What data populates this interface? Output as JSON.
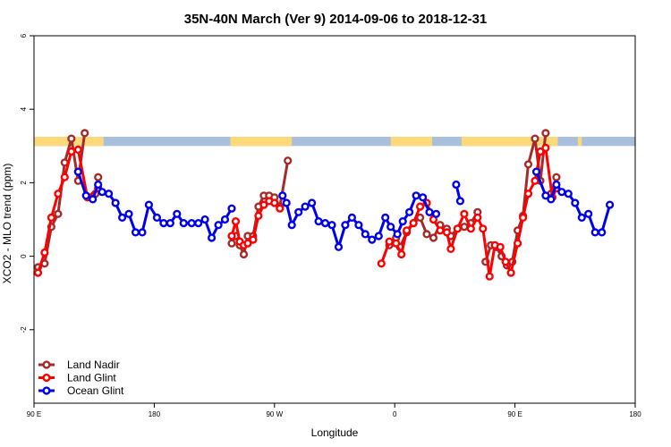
{
  "chart_data": {
    "type": "line",
    "title": "35N-40N March (Ver 9)   2014-09-06 to 2018-12-31",
    "xlabel": "Longitude",
    "ylabel": "XCO2 - MLO trend (ppm)",
    "xlim": [
      90,
      540
    ],
    "ylim": [
      -4,
      6
    ],
    "x_ticks": [
      {
        "value": 90,
        "label": "90 E"
      },
      {
        "value": 180,
        "label": "180"
      },
      {
        "value": 270,
        "label": "90 W"
      },
      {
        "value": 360,
        "label": "0"
      },
      {
        "value": 450,
        "label": "90 E"
      },
      {
        "value": 540,
        "label": "180"
      }
    ],
    "y_ticks": [
      {
        "value": -2,
        "label": "-2"
      },
      {
        "value": 0,
        "label": "0"
      },
      {
        "value": 2,
        "label": "2"
      },
      {
        "value": 4,
        "label": "4"
      },
      {
        "value": 6,
        "label": "6"
      }
    ],
    "legend_position": "bottom-left",
    "land_sea_band": {
      "y_range": [
        3.0,
        3.25
      ],
      "land_color": "#FDD97A",
      "ocean_color": "#A8BFDD",
      "land_ranges": [
        [
          90,
          142
        ],
        [
          237,
          283
        ],
        [
          357,
          388
        ],
        [
          410,
          482
        ],
        [
          497,
          500
        ]
      ]
    },
    "series": [
      {
        "name": "Land Nadir",
        "color": "#A52A2A",
        "segments": [
          [
            [
              93,
              -0.3
            ],
            [
              98,
              -0.2
            ],
            [
              103,
              0.8
            ],
            [
              108,
              1.15
            ],
            [
              113,
              2.55
            ],
            [
              118,
              3.2
            ],
            [
              123,
              2.05
            ],
            [
              128,
              3.35
            ]
          ],
          [
            [
              136,
              1.7
            ],
            [
              138,
              2.15
            ]
          ],
          [
            [
              238,
              0.35
            ],
            [
              241,
              0.55
            ],
            [
              244,
              0.3
            ],
            [
              247,
              0.05
            ],
            [
              250,
              0.55
            ],
            [
              254,
              0.55
            ],
            [
              258,
              1.35
            ],
            [
              262,
              1.65
            ],
            [
              266,
              1.65
            ],
            [
              270,
              1.6
            ],
            [
              274,
              1.35
            ],
            [
              280,
              2.6
            ]
          ],
          [
            [
              356,
              0.3
            ],
            [
              361,
              0.5
            ],
            [
              364,
              0.25
            ],
            [
              369,
              0.65
            ],
            [
              374,
              0.9
            ],
            [
              379,
              1.05
            ],
            [
              384,
              0.6
            ],
            [
              389,
              0.5
            ],
            [
              394,
              0.85
            ],
            [
              399,
              0.75
            ],
            [
              402,
              0.55
            ],
            [
              407,
              0.75
            ],
            [
              412,
              0.8
            ],
            [
              417,
              0.9
            ],
            [
              422,
              1.2
            ]
          ],
          [
            [
              428,
              -0.15
            ],
            [
              432,
              0.3
            ],
            [
              436,
              0.25
            ],
            [
              440,
              0.0
            ],
            [
              444,
              -0.25
            ],
            [
              448,
              -0.15
            ],
            [
              452,
              0.7
            ],
            [
              456,
              1.1
            ],
            [
              460,
              2.5
            ],
            [
              465,
              3.2
            ],
            [
              469,
              2.05
            ],
            [
              473,
              3.35
            ]
          ],
          [
            [
              477,
              1.7
            ],
            [
              481,
              2.15
            ]
          ]
        ]
      },
      {
        "name": "Land Glint",
        "color": "#FF0000",
        "segments": [
          [
            [
              93,
              -0.45
            ],
            [
              98,
              0.1
            ],
            [
              103,
              1.05
            ],
            [
              108,
              1.7
            ],
            [
              113,
              2.15
            ],
            [
              118,
              2.85
            ],
            [
              123,
              2.9
            ],
            [
              130,
              1.6
            ],
            [
              138,
              1.85
            ]
          ],
          [
            [
              238,
              0.55
            ],
            [
              241,
              0.95
            ],
            [
              244,
              0.4
            ],
            [
              247,
              0.3
            ],
            [
              250,
              0.35
            ],
            [
              254,
              0.45
            ],
            [
              258,
              1.1
            ],
            [
              262,
              1.4
            ],
            [
              266,
              1.5
            ],
            [
              270,
              1.45
            ],
            [
              274,
              1.3
            ]
          ],
          [
            [
              350,
              -0.2
            ],
            [
              356,
              0.4
            ],
            [
              361,
              0.35
            ],
            [
              365,
              0.05
            ],
            [
              369,
              0.7
            ],
            [
              374,
              0.9
            ],
            [
              379,
              1.35
            ],
            [
              384,
              1.45
            ],
            [
              389,
              1.0
            ],
            [
              394,
              0.7
            ],
            [
              399,
              0.65
            ],
            [
              402,
              0.2
            ],
            [
              407,
              0.75
            ],
            [
              412,
              1.15
            ],
            [
              417,
              0.75
            ],
            [
              422,
              1.05
            ],
            [
              426,
              0.75
            ],
            [
              431,
              -0.55
            ],
            [
              435,
              0.3
            ],
            [
              439,
              0.25
            ],
            [
              443,
              -0.15
            ],
            [
              447,
              -0.45
            ],
            [
              452,
              0.35
            ],
            [
              456,
              1.05
            ],
            [
              460,
              1.7
            ],
            [
              465,
              2.05
            ],
            [
              469,
              2.85
            ],
            [
              473,
              2.95
            ],
            [
              478,
              1.6
            ],
            [
              481,
              1.85
            ]
          ]
        ]
      },
      {
        "name": "Ocean Glint",
        "color": "#0000EE",
        "segments": [
          [
            [
              123,
              2.3
            ],
            [
              129,
              1.65
            ],
            [
              134,
              1.55
            ],
            [
              138,
              1.95
            ],
            [
              141,
              1.75
            ],
            [
              146,
              1.7
            ],
            [
              151,
              1.45
            ],
            [
              156,
              1.05
            ],
            [
              161,
              1.15
            ],
            [
              166,
              0.65
            ],
            [
              171,
              0.65
            ],
            [
              176,
              1.4
            ],
            [
              182,
              1.05
            ],
            [
              187,
              0.9
            ],
            [
              192,
              0.9
            ],
            [
              197,
              1.15
            ],
            [
              202,
              0.9
            ],
            [
              208,
              0.9
            ],
            [
              213,
              0.9
            ],
            [
              218,
              1.0
            ],
            [
              223,
              0.5
            ],
            [
              228,
              0.85
            ],
            [
              233,
              1.0
            ],
            [
              238,
              1.3
            ]
          ],
          [
            [
              276,
              1.65
            ],
            [
              279,
              1.45
            ],
            [
              283,
              0.85
            ],
            [
              288,
              1.2
            ],
            [
              293,
              1.35
            ],
            [
              298,
              1.45
            ],
            [
              303,
              0.95
            ],
            [
              308,
              0.9
            ],
            [
              313,
              0.85
            ],
            [
              318,
              0.25
            ],
            [
              323,
              0.85
            ],
            [
              328,
              1.05
            ],
            [
              333,
              0.85
            ],
            [
              338,
              0.6
            ],
            [
              343,
              0.45
            ],
            [
              348,
              0.55
            ],
            [
              353,
              1.05
            ],
            [
              357,
              0.8
            ],
            [
              362,
              0.6
            ],
            [
              366,
              0.95
            ],
            [
              371,
              1.2
            ],
            [
              376,
              1.65
            ],
            [
              381,
              1.6
            ],
            [
              386,
              1.2
            ],
            [
              391,
              1.15
            ]
          ],
          [
            [
              406,
              1.95
            ],
            [
              409,
              1.5
            ]
          ],
          [
            [
              466,
              2.3
            ],
            [
              473,
              1.65
            ],
            [
              477,
              1.55
            ],
            [
              481,
              1.95
            ],
            [
              485,
              1.75
            ],
            [
              490,
              1.7
            ],
            [
              495,
              1.45
            ],
            [
              500,
              1.05
            ],
            [
              505,
              1.15
            ],
            [
              510,
              0.65
            ],
            [
              515,
              0.65
            ],
            [
              521,
              1.4
            ]
          ]
        ]
      }
    ]
  }
}
